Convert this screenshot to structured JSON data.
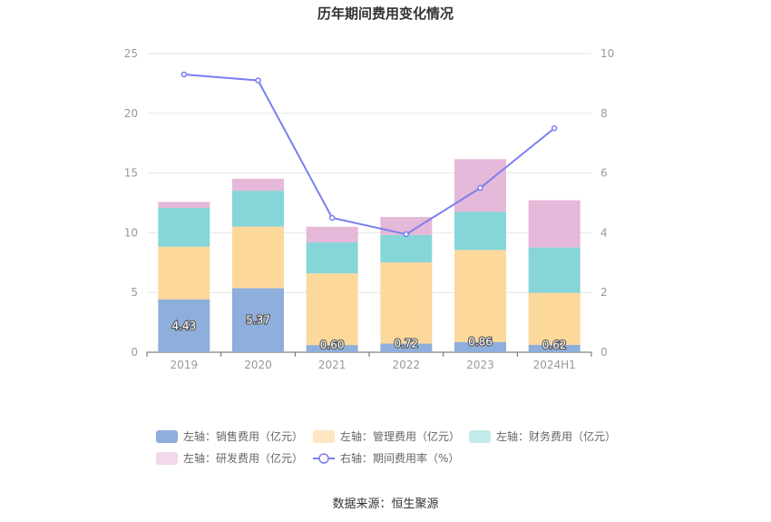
{
  "chart_data": {
    "type": "bar",
    "title": "历年期间费用变化情况",
    "categories": [
      "2019",
      "2020",
      "2021",
      "2022",
      "2023",
      "2024H1"
    ],
    "left_axis": {
      "ylim": [
        0,
        25
      ],
      "ticks": [
        "0",
        "5",
        "10",
        "15",
        "20",
        "25"
      ]
    },
    "right_axis": {
      "ylim": [
        0,
        10
      ],
      "ticks": [
        "0",
        "2",
        "4",
        "6",
        "8",
        "10"
      ]
    },
    "stacked": true,
    "series": [
      {
        "name": "左轴：销售费用（亿元）",
        "axis": "left",
        "type": "bar",
        "color": "#8eaedb",
        "values": [
          4.43,
          5.37,
          0.6,
          0.72,
          0.86,
          0.62
        ],
        "labels": [
          "4.43",
          "5.37",
          "0.60",
          "0.72",
          "0.86",
          "0.62"
        ]
      },
      {
        "name": "左轴：管理费用（亿元）",
        "axis": "left",
        "type": "bar",
        "color": "#fdd89b",
        "values": [
          4.4,
          5.15,
          6.0,
          6.8,
          7.7,
          4.35
        ]
      },
      {
        "name": "左轴：财务费用（亿元）",
        "axis": "left",
        "type": "bar",
        "color": "#86d5d8",
        "values": [
          3.25,
          3.0,
          2.6,
          2.3,
          3.2,
          3.8
        ]
      },
      {
        "name": "左轴：研发费用（亿元）",
        "axis": "left",
        "type": "bar",
        "color": "#e6b8d9",
        "values": [
          0.5,
          1.0,
          1.3,
          1.5,
          4.4,
          3.95
        ]
      },
      {
        "name": "右轴：期间费用率（%）",
        "axis": "right",
        "type": "line",
        "color": "#7b7fee",
        "values": [
          9.3,
          9.1,
          4.5,
          3.95,
          5.5,
          7.5
        ]
      }
    ],
    "legend_colors": [
      "#8eaedb",
      "#fde6c0",
      "#c2ebeb",
      "#f2d9ea",
      "#7b7fee"
    ],
    "grid": true,
    "legend_position": "bottom"
  },
  "source": "数据来源：恒生聚源"
}
